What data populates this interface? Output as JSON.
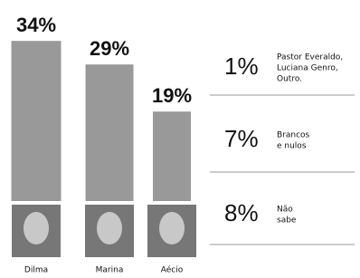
{
  "chart_data": {
    "type": "bar",
    "categories": [
      "Dilma",
      "Marina",
      "Aécio"
    ],
    "values": [
      34,
      29,
      19
    ],
    "value_labels": [
      "34%",
      "29%",
      "19%"
    ],
    "color": "#999999"
  },
  "side_list": [
    {
      "percent": "1%",
      "lines": [
        "Pastor Everaldo,",
        "Luciana Genro,",
        "Outro."
      ]
    },
    {
      "percent": "7%",
      "lines": [
        "Brancos",
        "e nulos"
      ]
    },
    {
      "percent": "8%",
      "lines": [
        "Não",
        "sabe"
      ]
    }
  ]
}
